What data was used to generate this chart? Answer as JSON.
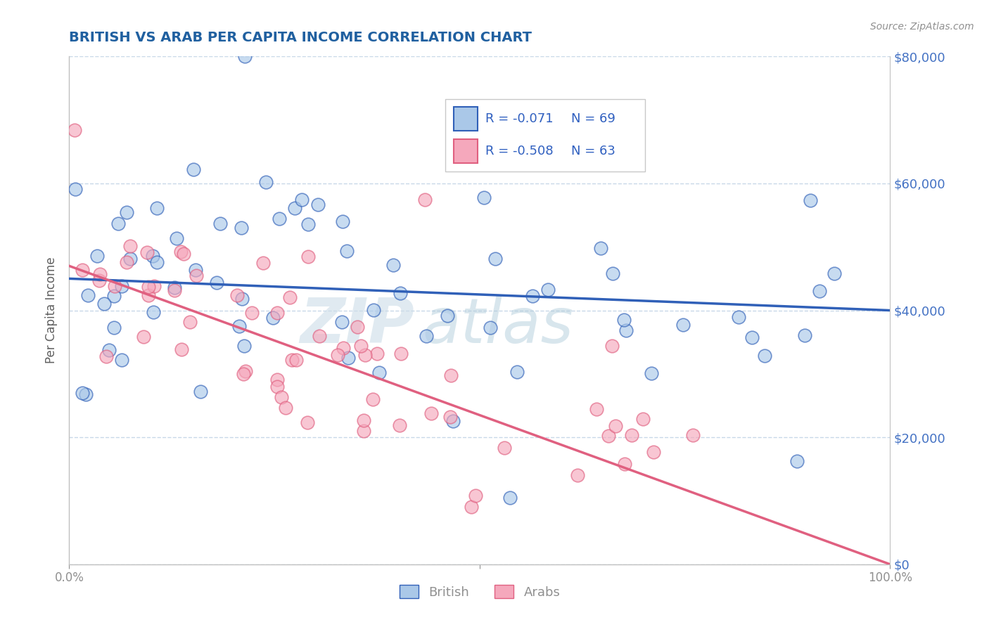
{
  "title": "BRITISH VS ARAB PER CAPITA INCOME CORRELATION CHART",
  "source": "Source: ZipAtlas.com",
  "ylabel": "Per Capita Income",
  "xlim": [
    0,
    1
  ],
  "ylim": [
    0,
    80000
  ],
  "yticks": [
    0,
    20000,
    40000,
    60000,
    80000
  ],
  "ytick_labels_right": [
    "$0",
    "$20,000",
    "$40,000",
    "$60,000",
    "$80,000"
  ],
  "british_color": "#aac8e8",
  "arab_color": "#f5a8bc",
  "british_line_color": "#3060b8",
  "arab_line_color": "#e06080",
  "legend_label_british": "British",
  "legend_label_arab": "Arabs",
  "british_R": -0.071,
  "arab_R": -0.508,
  "british_N": 69,
  "arab_N": 63,
  "british_intercept": 45000,
  "british_slope": -5000,
  "arab_intercept": 47000,
  "arab_slope": -47000,
  "watermark_zip": "ZIP",
  "watermark_atlas": "atlas",
  "bg_color": "#ffffff",
  "grid_color": "#c8d8e8",
  "title_color": "#2060a0",
  "axis_label_color": "#606060",
  "tick_color": "#909090",
  "legend_R_color": "#3060c0",
  "random_seed": 42
}
